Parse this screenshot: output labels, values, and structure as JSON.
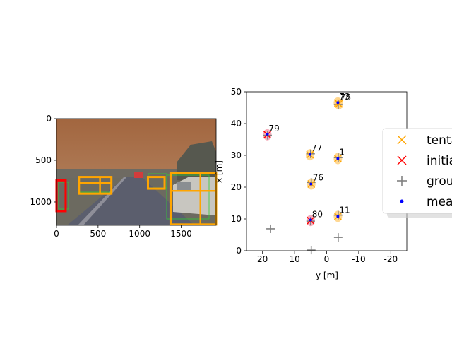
{
  "chart_data": [
    {
      "type": "image",
      "xlim": [
        0,
        1920
      ],
      "ylim": [
        1280,
        0
      ],
      "xticks": [
        0,
        500,
        1000,
        1500
      ],
      "yticks": [
        0,
        500,
        1000
      ],
      "colors": {
        "sky": "#a9754e",
        "road": "#5a5d6b",
        "tentative": "#ffa500",
        "initialized": "#ff0000",
        "image_measurement": "#33cc33"
      },
      "boxes": [
        {
          "status": "initialized",
          "x1": 0,
          "y1": 740,
          "x2": 110,
          "y2": 1110
        },
        {
          "status": "tentative",
          "x1": 270,
          "y1": 700,
          "x2": 660,
          "y2": 900
        },
        {
          "status": "tentative",
          "x1": 1100,
          "y1": 700,
          "x2": 1300,
          "y2": 840
        },
        {
          "status": "tentative",
          "x1": 1380,
          "y1": 650,
          "x2": 1920,
          "y2": 1270
        }
      ]
    },
    {
      "type": "scatter",
      "xlabel": "y [m]",
      "ylabel": "x [m]",
      "xlim": [
        25,
        -25
      ],
      "ylim": [
        0,
        50
      ],
      "xticks": [
        20,
        10,
        0,
        -10,
        -20
      ],
      "yticks": [
        0,
        10,
        20,
        30,
        40,
        50
      ],
      "colors": {
        "tentative": "#ffa500",
        "initialized": "#ff0000",
        "ground_truth": "#808080",
        "measurement": "#0000ff",
        "shade_tentative": "#ffd180",
        "shade_initialized": "#f4a0b0"
      },
      "tracks": [
        {
          "label": "73",
          "y": -3.5,
          "x": 46.5,
          "status": "tentative"
        },
        {
          "label": "78",
          "y": -3.8,
          "x": 46.2,
          "status": "tentative"
        },
        {
          "label": "79",
          "y": 18.5,
          "x": 36.5,
          "status": "initialized"
        },
        {
          "label": "77",
          "y": 5.2,
          "x": 30.2,
          "status": "tentative"
        },
        {
          "label": "1",
          "y": -3.5,
          "x": 29.0,
          "status": "tentative"
        },
        {
          "label": "76",
          "y": 4.8,
          "x": 21.0,
          "status": "tentative"
        },
        {
          "label": "80",
          "y": 5.0,
          "x": 9.5,
          "status": "initialized"
        },
        {
          "label": "11",
          "y": -3.5,
          "x": 10.8,
          "status": "tentative"
        }
      ],
      "ground_truth": [
        {
          "y": -3.6,
          "x": 46.0
        },
        {
          "y": 18.4,
          "x": 36.3
        },
        {
          "y": 5.0,
          "x": 30.5
        },
        {
          "y": -3.6,
          "x": 29.3
        },
        {
          "y": 4.8,
          "x": 21.5
        },
        {
          "y": 5.0,
          "x": 9.3
        },
        {
          "y": -3.6,
          "x": 11.2
        },
        {
          "y": 17.5,
          "x": 6.9
        },
        {
          "y": 4.8,
          "x": 0.2
        },
        {
          "y": -3.6,
          "x": 4.2
        }
      ],
      "measurements": [
        {
          "y": -3.5,
          "x": 46.6
        },
        {
          "y": 18.5,
          "x": 36.7
        },
        {
          "y": 5.2,
          "x": 30.3
        },
        {
          "y": -3.5,
          "x": 29.0
        },
        {
          "y": 4.9,
          "x": 21.0
        },
        {
          "y": 5.0,
          "x": 9.7
        },
        {
          "y": -3.5,
          "x": 10.8
        }
      ],
      "legend": {
        "placement": "center-right",
        "entries": [
          {
            "key": "tentative",
            "label": "tentative"
          },
          {
            "key": "initialized",
            "label": "initialized"
          },
          {
            "key": "ground_truth",
            "label": "ground truth"
          },
          {
            "key": "measurement",
            "label": "measurement"
          }
        ]
      }
    }
  ]
}
